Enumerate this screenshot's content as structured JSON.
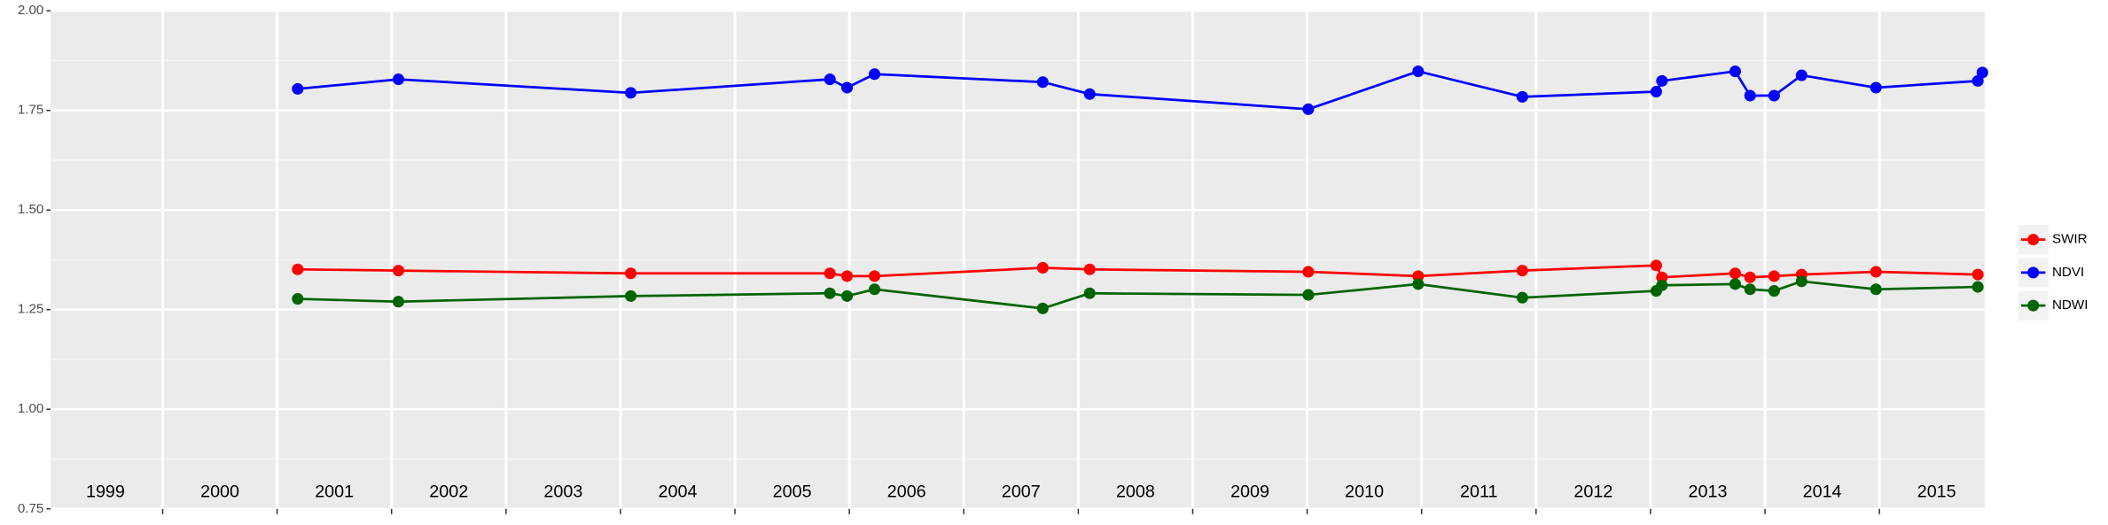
{
  "chart_data": {
    "type": "line",
    "x": [
      2001.18,
      2002.06,
      2004.09,
      2005.83,
      2005.98,
      2006.22,
      2007.69,
      2008.1,
      2010.01,
      2010.97,
      2011.88,
      2013.05,
      2013.1,
      2013.74,
      2013.87,
      2014.08,
      2014.32,
      2014.97,
      2015.86,
      2015.9
    ],
    "series": [
      {
        "name": "SWIR",
        "color": "#ff0000",
        "values": [
          1.351,
          1.348,
          1.341,
          1.341,
          1.334,
          1.334,
          1.355,
          1.351,
          1.345,
          1.334,
          1.348,
          1.361,
          1.331,
          1.341,
          1.331,
          1.334,
          1.338,
          1.345,
          1.338,
          null
        ]
      },
      {
        "name": "NDVI",
        "color": "#0000ff",
        "values": [
          1.804,
          1.828,
          1.794,
          1.828,
          1.807,
          1.841,
          1.821,
          1.791,
          1.753,
          1.848,
          1.784,
          1.797,
          1.824,
          1.848,
          1.787,
          1.787,
          1.838,
          1.807,
          1.824,
          1.845
        ]
      },
      {
        "name": "NDWI",
        "color": "#006400",
        "values": [
          1.277,
          1.27,
          1.284,
          1.291,
          1.284,
          1.301,
          1.253,
          1.291,
          1.287,
          1.314,
          1.28,
          1.297,
          1.311,
          1.314,
          1.301,
          1.297,
          1.321,
          1.301,
          1.307,
          null
        ]
      }
    ],
    "xlim": [
      1999.02,
      2015.92
    ],
    "xticks": [
      {
        "value": 1999.5,
        "label": "1999"
      },
      {
        "value": 2000.5,
        "label": "2000"
      },
      {
        "value": 2001.5,
        "label": "2001"
      },
      {
        "value": 2002.5,
        "label": "2002"
      },
      {
        "value": 2003.5,
        "label": "2003"
      },
      {
        "value": 2004.5,
        "label": "2004"
      },
      {
        "value": 2005.5,
        "label": "2005"
      },
      {
        "value": 2006.5,
        "label": "2006"
      },
      {
        "value": 2007.5,
        "label": "2007"
      },
      {
        "value": 2008.5,
        "label": "2008"
      },
      {
        "value": 2009.5,
        "label": "2009"
      },
      {
        "value": 2010.5,
        "label": "2010"
      },
      {
        "value": 2011.5,
        "label": "2011"
      },
      {
        "value": 2012.5,
        "label": "2012"
      },
      {
        "value": 2013.5,
        "label": "2013"
      },
      {
        "value": 2014.5,
        "label": "2014"
      },
      {
        "value": 2015.5,
        "label": "2015"
      }
    ],
    "xgrid": [
      2000,
      2001,
      2002,
      2003,
      2004,
      2005,
      2006,
      2007,
      2008,
      2009,
      2010,
      2011,
      2012,
      2013,
      2014,
      2015
    ],
    "ylim": [
      0.75,
      2
    ],
    "yticks": [
      0.75,
      {
        "value": 1,
        "label": "1.00"
      },
      1.25,
      {
        "value": 1.5,
        "label": "1.50"
      },
      1.75,
      {
        "value": 2,
        "label": "2.00"
      }
    ],
    "grid": true,
    "legend": "right"
  }
}
